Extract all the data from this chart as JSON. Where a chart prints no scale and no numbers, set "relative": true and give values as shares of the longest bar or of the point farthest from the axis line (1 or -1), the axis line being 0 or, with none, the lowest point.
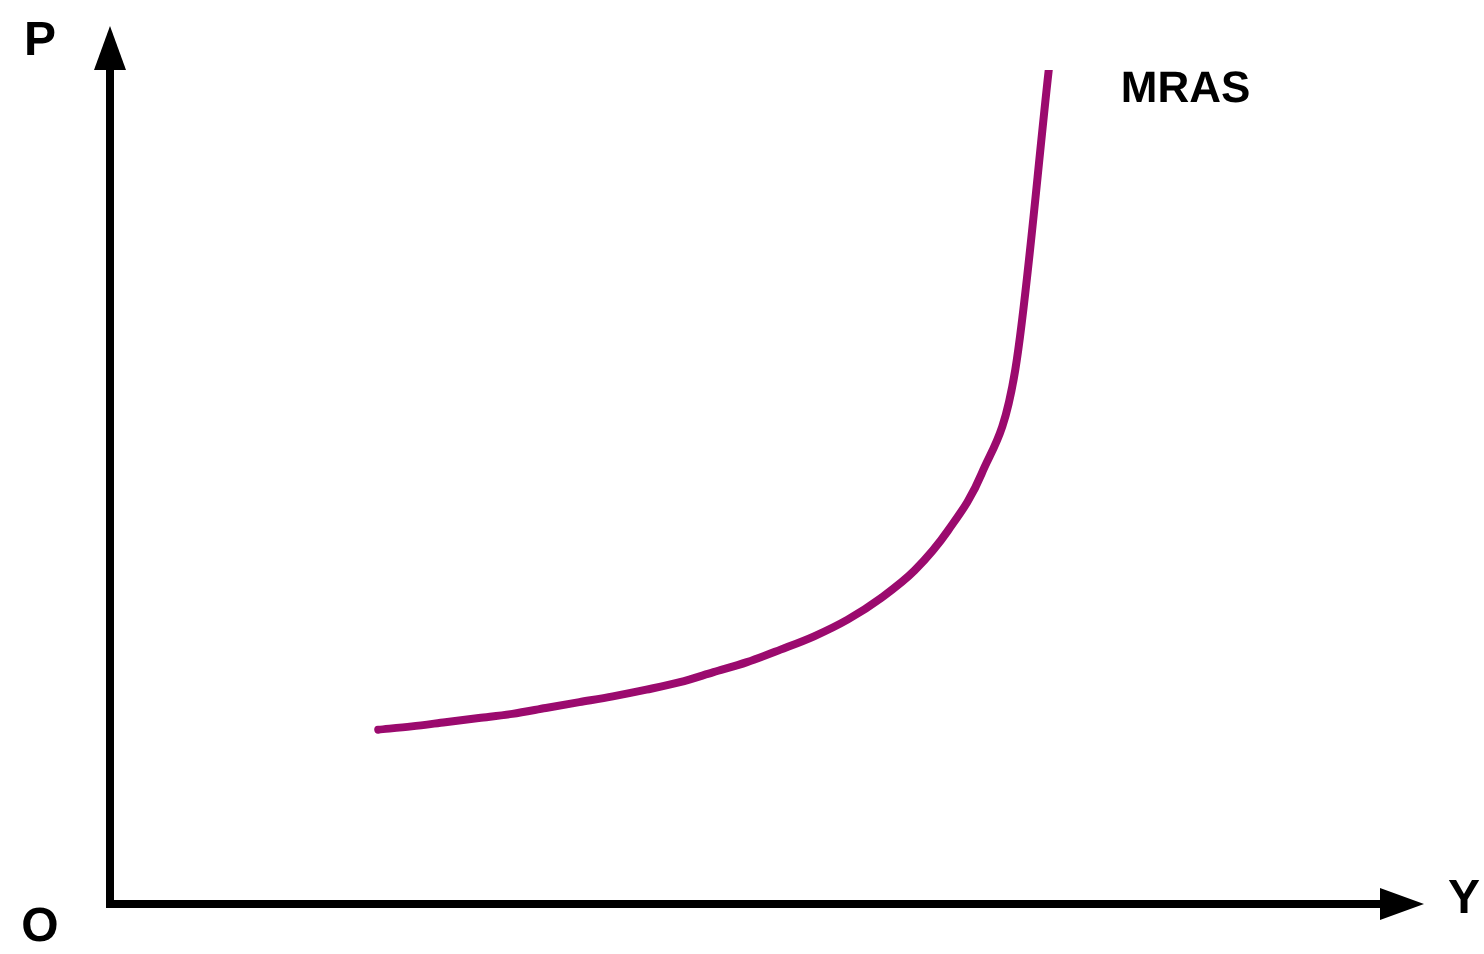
{
  "chart_data": {
    "type": "line",
    "relative": true,
    "xlabel": "Y",
    "ylabel": "P",
    "annotations": [
      "O"
    ],
    "legend": false,
    "marker": "none",
    "categories": [
      null,
      null,
      null,
      null,
      null,
      null,
      null,
      null,
      null,
      null,
      null,
      null,
      null,
      null,
      null,
      null,
      null,
      null,
      null,
      null,
      null,
      null,
      null,
      null,
      null,
      null,
      null,
      null,
      null,
      null,
      null,
      null,
      null,
      null,
      null,
      null,
      null,
      null,
      null
    ],
    "series": [
      {
        "name": "MRAS",
        "color": "#9b0a6e",
        "values": [
          null,
          null,
          null,
          null,
          null,
          null,
          null,
          null,
          0.209,
          0.213,
          0.218,
          0.223,
          0.228,
          0.235,
          0.242,
          0.249,
          0.257,
          0.266,
          0.278,
          0.29,
          0.305,
          0.321,
          0.341,
          0.367,
          0.4,
          0.448,
          0.516,
          0.64,
          1,
          null,
          null,
          null,
          null,
          null,
          null,
          null,
          null,
          null,
          null
        ]
      }
    ]
  }
}
